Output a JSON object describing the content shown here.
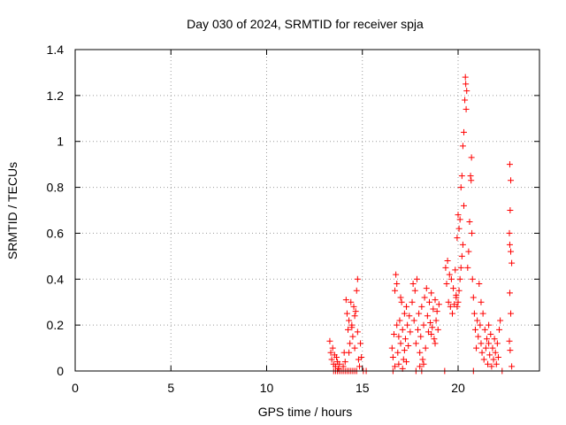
{
  "chart_data": {
    "type": "scatter",
    "title": "Day 030 of 2024, SRMTID for receiver spja",
    "xlabel": "GPS time / hours",
    "ylabel": "SRMTID / TECUs",
    "xlim": [
      0,
      24.25
    ],
    "ylim": [
      0,
      1.4
    ],
    "xticks": [
      "0",
      "5",
      "10",
      "15",
      "20"
    ],
    "xtick_values": [
      0,
      5,
      10,
      15,
      20
    ],
    "yticks": [
      "0",
      "0.2",
      "0.4",
      "0.6",
      "0.8",
      "1",
      "1.2",
      "1.4"
    ],
    "ytick_values": [
      0,
      0.2,
      0.4,
      0.6,
      0.8,
      1.0,
      1.2,
      1.4
    ],
    "grid": true,
    "marker": "plus",
    "series": [
      {
        "name": "SRMTID",
        "color": "#ff0000",
        "points": [
          [
            13.3,
            0.13
          ],
          [
            13.35,
            0.08
          ],
          [
            13.4,
            0.05
          ],
          [
            13.45,
            0.1
          ],
          [
            13.5,
            0.03
          ],
          [
            13.55,
            0.07
          ],
          [
            13.6,
            0.02
          ],
          [
            13.65,
            0.06
          ],
          [
            13.7,
            0.04
          ],
          [
            13.75,
            0.01
          ],
          [
            13.8,
            0.03
          ],
          [
            13.5,
            0.0
          ],
          [
            13.6,
            0.0
          ],
          [
            13.7,
            0.0
          ],
          [
            13.8,
            0.0
          ],
          [
            13.9,
            0.0
          ],
          [
            14.0,
            0.0
          ],
          [
            14.1,
            0.0
          ],
          [
            14.2,
            0.0
          ],
          [
            14.3,
            0.0
          ],
          [
            14.4,
            0.0
          ],
          [
            14.5,
            0.0
          ],
          [
            14.6,
            0.0
          ],
          [
            14.7,
            0.0
          ],
          [
            14.0,
            0.02
          ],
          [
            14.05,
            0.08
          ],
          [
            14.1,
            0.04
          ],
          [
            14.15,
            0.31
          ],
          [
            14.2,
            0.25
          ],
          [
            14.25,
            0.18
          ],
          [
            14.3,
            0.22
          ],
          [
            14.35,
            0.12
          ],
          [
            14.4,
            0.3
          ],
          [
            14.45,
            0.2
          ],
          [
            14.5,
            0.15
          ],
          [
            14.55,
            0.28
          ],
          [
            14.6,
            0.1
          ],
          [
            14.65,
            0.26
          ],
          [
            14.7,
            0.35
          ],
          [
            14.75,
            0.4
          ],
          [
            14.8,
            0.05
          ],
          [
            14.85,
            0.02
          ],
          [
            14.9,
            0.12
          ],
          [
            14.95,
            0.06
          ],
          [
            14.3,
            0.08
          ],
          [
            14.45,
            0.19
          ],
          [
            14.6,
            0.24
          ],
          [
            14.75,
            0.17
          ],
          [
            15.05,
            0.0
          ],
          [
            15.2,
            0.0
          ],
          [
            16.55,
            0.1
          ],
          [
            16.6,
            0.06
          ],
          [
            16.65,
            0.16
          ],
          [
            16.7,
            0.35
          ],
          [
            16.75,
            0.42
          ],
          [
            16.8,
            0.2
          ],
          [
            16.85,
            0.08
          ],
          [
            16.9,
            0.15
          ],
          [
            16.95,
            0.22
          ],
          [
            17.0,
            0.12
          ],
          [
            17.05,
            0.3
          ],
          [
            17.1,
            0.18
          ],
          [
            17.15,
            0.05
          ],
          [
            17.2,
            0.25
          ],
          [
            17.25,
            0.14
          ],
          [
            17.3,
            0.28
          ],
          [
            17.35,
            0.2
          ],
          [
            17.4,
            0.11
          ],
          [
            17.45,
            0.24
          ],
          [
            17.5,
            0.17
          ],
          [
            16.7,
            0.02
          ],
          [
            16.9,
            0.03
          ],
          [
            17.1,
            0.01
          ],
          [
            17.3,
            0.04
          ],
          [
            16.8,
            0.38
          ],
          [
            17.0,
            0.32
          ],
          [
            17.2,
            0.09
          ],
          [
            16.6,
            0.0
          ],
          [
            17.8,
            0.0
          ],
          [
            17.6,
            0.3
          ],
          [
            17.65,
            0.38
          ],
          [
            17.7,
            0.22
          ],
          [
            17.75,
            0.35
          ],
          [
            17.8,
            0.12
          ],
          [
            17.85,
            0.4
          ],
          [
            17.9,
            0.18
          ],
          [
            17.95,
            0.25
          ],
          [
            18.0,
            0.08
          ],
          [
            18.05,
            0.15
          ],
          [
            18.1,
            0.28
          ],
          [
            18.15,
            0.05
          ],
          [
            18.2,
            0.2
          ],
          [
            18.25,
            0.32
          ],
          [
            18.3,
            0.1
          ],
          [
            18.35,
            0.36
          ],
          [
            18.4,
            0.24
          ],
          [
            18.45,
            0.17
          ],
          [
            18.5,
            0.3
          ],
          [
            18.55,
            0.21
          ],
          [
            18.6,
            0.34
          ],
          [
            18.65,
            0.19
          ],
          [
            18.7,
            0.27
          ],
          [
            18.75,
            0.14
          ],
          [
            18.8,
            0.31
          ],
          [
            18.85,
            0.22
          ],
          [
            18.9,
            0.26
          ],
          [
            18.95,
            0.18
          ],
          [
            19.0,
            0.29
          ],
          [
            18.2,
            0.03
          ],
          [
            18.0,
            0.02
          ],
          [
            18.6,
            0.16
          ],
          [
            18.8,
            0.12
          ],
          [
            19.3,
            0.0
          ],
          [
            18.1,
            0.0
          ],
          [
            19.35,
            0.45
          ],
          [
            19.4,
            0.38
          ],
          [
            19.45,
            0.48
          ],
          [
            19.5,
            0.3
          ],
          [
            19.55,
            0.42
          ],
          [
            19.6,
            0.28
          ],
          [
            19.65,
            0.4
          ],
          [
            19.7,
            0.25
          ],
          [
            19.75,
            0.36
          ],
          [
            19.8,
            0.29
          ],
          [
            19.85,
            0.44
          ],
          [
            19.9,
            0.32
          ],
          [
            19.95,
            0.58
          ],
          [
            20.0,
            0.68
          ],
          [
            20.05,
            0.62
          ],
          [
            20.1,
            0.66
          ],
          [
            20.15,
            0.8
          ],
          [
            20.2,
            0.85
          ],
          [
            20.25,
            0.98
          ],
          [
            20.3,
            1.04
          ],
          [
            20.35,
            1.18
          ],
          [
            20.4,
            1.25
          ],
          [
            20.45,
            1.22
          ],
          [
            20.38,
            1.28
          ],
          [
            20.42,
            1.14
          ],
          [
            20.3,
            0.72
          ],
          [
            20.25,
            0.55
          ],
          [
            20.2,
            0.5
          ],
          [
            20.15,
            0.45
          ],
          [
            20.1,
            0.4
          ],
          [
            20.05,
            0.35
          ],
          [
            20.0,
            0.3
          ],
          [
            19.95,
            0.28
          ],
          [
            19.9,
            0.33
          ],
          [
            20.5,
            0.45
          ],
          [
            20.55,
            0.52
          ],
          [
            20.6,
            0.65
          ],
          [
            20.65,
            0.85
          ],
          [
            20.7,
            0.93
          ],
          [
            20.68,
            0.83
          ],
          [
            20.72,
            0.6
          ],
          [
            20.75,
            0.4
          ],
          [
            20.8,
            0.32
          ],
          [
            20.85,
            0.25
          ],
          [
            20.9,
            0.18
          ],
          [
            20.95,
            0.1
          ],
          [
            21.0,
            0.22
          ],
          [
            21.05,
            0.15
          ],
          [
            21.1,
            0.38
          ],
          [
            21.15,
            0.2
          ],
          [
            21.2,
            0.12
          ],
          [
            21.25,
            0.08
          ],
          [
            21.3,
            0.25
          ],
          [
            21.35,
            0.05
          ],
          [
            21.4,
            0.18
          ],
          [
            21.45,
            0.1
          ],
          [
            21.5,
            0.14
          ],
          [
            21.55,
            0.03
          ],
          [
            21.6,
            0.12
          ],
          [
            21.65,
            0.07
          ],
          [
            21.7,
            0.16
          ],
          [
            21.75,
            0.02
          ],
          [
            21.8,
            0.1
          ],
          [
            21.85,
            0.05
          ],
          [
            21.9,
            0.14
          ],
          [
            21.95,
            0.08
          ],
          [
            22.0,
            0.03
          ],
          [
            22.05,
            0.12
          ],
          [
            22.1,
            0.06
          ],
          [
            22.15,
            0.18
          ],
          [
            22.2,
            0.22
          ],
          [
            21.2,
            0.3
          ],
          [
            21.6,
            0.2
          ],
          [
            20.8,
            0.0
          ],
          [
            22.3,
            0.0
          ],
          [
            22.7,
            0.9
          ],
          [
            22.75,
            0.83
          ],
          [
            22.72,
            0.7
          ],
          [
            22.68,
            0.6
          ],
          [
            22.7,
            0.55
          ],
          [
            22.75,
            0.52
          ],
          [
            22.8,
            0.47
          ],
          [
            22.7,
            0.34
          ],
          [
            22.75,
            0.25
          ],
          [
            22.68,
            0.13
          ],
          [
            22.72,
            0.09
          ],
          [
            22.8,
            0.02
          ]
        ]
      }
    ]
  }
}
